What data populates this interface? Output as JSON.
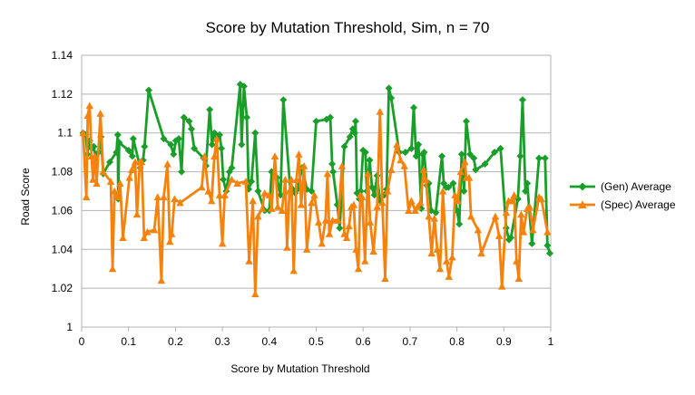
{
  "chart_data": {
    "type": "line",
    "title": "Score by Mutation Threshold, Sim, n = 70",
    "xlabel": "Score by Mutation Threshold",
    "ylabel": "Road Score",
    "xlim": [
      0,
      1
    ],
    "ylim": [
      1,
      1.14
    ],
    "x_ticks": [
      0,
      0.1,
      0.2,
      0.3,
      0.4,
      0.5,
      0.6,
      0.7,
      0.8,
      0.9,
      1
    ],
    "y_ticks": [
      1,
      1.02,
      1.04,
      1.06,
      1.08,
      1.1,
      1.12,
      1.14
    ],
    "x_tick_labels": [
      "0",
      "0.1",
      "0.2",
      "0.3",
      "0.4",
      "0.5",
      "0.6",
      "0.7",
      "0.8",
      "0.9",
      "1"
    ],
    "y_tick_labels": [
      "1",
      "1.02",
      "1.04",
      "1.06",
      "1.08",
      "1.1",
      "1.12",
      "1.14"
    ],
    "grid": {
      "horizontal": true,
      "vertical": false
    },
    "legend_position": "right",
    "series": [
      {
        "name": "(Gen) Average",
        "color": "#1a9e2a",
        "marker": "diamond",
        "points": [
          [
            0.003,
            1.1
          ],
          [
            0.009,
            1.099
          ],
          [
            0.012,
            1.089
          ],
          [
            0.017,
            1.096
          ],
          [
            0.022,
            1.092
          ],
          [
            0.026,
            1.093
          ],
          [
            0.03,
            1.087
          ],
          [
            0.036,
            1.09
          ],
          [
            0.041,
            1.098
          ],
          [
            0.046,
            1.079
          ],
          [
            0.06,
            1.085
          ],
          [
            0.074,
            1.09
          ],
          [
            0.077,
            1.099
          ],
          [
            0.078,
            1.066
          ],
          [
            0.08,
            1.095
          ],
          [
            0.1,
            1.091
          ],
          [
            0.108,
            1.088
          ],
          [
            0.11,
            1.097
          ],
          [
            0.125,
            1.082
          ],
          [
            0.131,
            1.086
          ],
          [
            0.134,
            1.093
          ],
          [
            0.143,
            1.122
          ],
          [
            0.175,
            1.097
          ],
          [
            0.19,
            1.094
          ],
          [
            0.196,
            1.089
          ],
          [
            0.201,
            1.096
          ],
          [
            0.207,
            1.097
          ],
          [
            0.213,
            1.08
          ],
          [
            0.218,
            1.108
          ],
          [
            0.229,
            1.106
          ],
          [
            0.234,
            1.102
          ],
          [
            0.24,
            1.092
          ],
          [
            0.26,
            1.087
          ],
          [
            0.265,
            1.083
          ],
          [
            0.273,
            1.112
          ],
          [
            0.278,
            1.094
          ],
          [
            0.283,
            1.1
          ],
          [
            0.29,
            1.098
          ],
          [
            0.294,
            1.099
          ],
          [
            0.298,
            1.092
          ],
          [
            0.302,
            1.076
          ],
          [
            0.308,
            1.07
          ],
          [
            0.315,
            1.08
          ],
          [
            0.32,
            1.082
          ],
          [
            0.338,
            1.125
          ],
          [
            0.341,
            1.094
          ],
          [
            0.346,
            1.124
          ],
          [
            0.352,
            1.108
          ],
          [
            0.356,
            1.071
          ],
          [
            0.362,
            1.075
          ],
          [
            0.37,
            1.1
          ],
          [
            0.376,
            1.07
          ],
          [
            0.39,
            1.06
          ],
          [
            0.4,
            1.06
          ],
          [
            0.405,
            1.08
          ],
          [
            0.41,
            1.079
          ],
          [
            0.416,
            1.077
          ],
          [
            0.424,
            1.068
          ],
          [
            0.43,
            1.117
          ],
          [
            0.445,
            1.07
          ],
          [
            0.45,
            1.071
          ],
          [
            0.455,
            1.069
          ],
          [
            0.46,
            1.071
          ],
          [
            0.47,
            1.082
          ],
          [
            0.48,
            1.071
          ],
          [
            0.49,
            1.07
          ],
          [
            0.5,
            1.106
          ],
          [
            0.522,
            1.107
          ],
          [
            0.53,
            1.108
          ],
          [
            0.534,
            1.084
          ],
          [
            0.536,
            1.08
          ],
          [
            0.545,
            1.063
          ],
          [
            0.55,
            1.051
          ],
          [
            0.56,
            1.093
          ],
          [
            0.572,
            1.098
          ],
          [
            0.578,
            1.102
          ],
          [
            0.582,
            1.1
          ],
          [
            0.584,
            1.106
          ],
          [
            0.587,
            1.069
          ],
          [
            0.592,
            1.066
          ],
          [
            0.595,
            1.07
          ],
          [
            0.6,
            1.091
          ],
          [
            0.605,
            1.09
          ],
          [
            0.608,
            1.07
          ],
          [
            0.614,
            1.086
          ],
          [
            0.619,
            1.072
          ],
          [
            0.624,
            1.068
          ],
          [
            0.63,
            1.078
          ],
          [
            0.636,
            1.065
          ],
          [
            0.645,
            1.068
          ],
          [
            0.65,
            1.071
          ],
          [
            0.655,
            1.123
          ],
          [
            0.66,
            1.118
          ],
          [
            0.677,
            1.09
          ],
          [
            0.69,
            1.09
          ],
          [
            0.703,
            1.092
          ],
          [
            0.708,
            1.113
          ],
          [
            0.713,
            1.088
          ],
          [
            0.718,
            1.094
          ],
          [
            0.724,
            1.061
          ],
          [
            0.727,
            1.089
          ],
          [
            0.73,
            1.09
          ],
          [
            0.736,
            1.073
          ],
          [
            0.74,
            1.074
          ],
          [
            0.745,
            1.06
          ],
          [
            0.755,
            1.059
          ],
          [
            0.768,
            1.088
          ],
          [
            0.772,
            1.074
          ],
          [
            0.777,
            1.072
          ],
          [
            0.782,
            1.072
          ],
          [
            0.792,
            1.074
          ],
          [
            0.8,
            1.06
          ],
          [
            0.805,
            1.053
          ],
          [
            0.81,
            1.089
          ],
          [
            0.815,
            1.07
          ],
          [
            0.82,
            1.106
          ],
          [
            0.828,
            1.089
          ],
          [
            0.836,
            1.087
          ],
          [
            0.84,
            1.081
          ],
          [
            0.86,
            1.084
          ],
          [
            0.88,
            1.09
          ],
          [
            0.893,
            1.092
          ],
          [
            0.905,
            1.051
          ],
          [
            0.911,
            1.045
          ],
          [
            0.915,
            1.046
          ],
          [
            0.93,
            1.066
          ],
          [
            0.935,
            1.088
          ],
          [
            0.94,
            1.117
          ],
          [
            0.946,
            1.07
          ],
          [
            0.95,
            1.074
          ],
          [
            0.96,
            1.043
          ],
          [
            0.975,
            1.087
          ],
          [
            0.988,
            1.087
          ],
          [
            0.993,
            1.042
          ],
          [
            0.998,
            1.038
          ]
        ]
      },
      {
        "name": "(Spec) Average",
        "color": "#f5820d",
        "marker": "triangle",
        "points": [
          [
            0.003,
            1.1
          ],
          [
            0.01,
            1.067
          ],
          [
            0.013,
            1.109
          ],
          [
            0.017,
            1.114
          ],
          [
            0.021,
            1.088
          ],
          [
            0.024,
            1.076
          ],
          [
            0.028,
            1.088
          ],
          [
            0.032,
            1.074
          ],
          [
            0.04,
            1.11
          ],
          [
            0.046,
            1.08
          ],
          [
            0.062,
            1.075
          ],
          [
            0.066,
            1.03
          ],
          [
            0.07,
            1.07
          ],
          [
            0.076,
            1.067
          ],
          [
            0.082,
            1.074
          ],
          [
            0.088,
            1.046
          ],
          [
            0.102,
            1.077
          ],
          [
            0.107,
            1.081
          ],
          [
            0.114,
            1.085
          ],
          [
            0.118,
            1.058
          ],
          [
            0.124,
            1.085
          ],
          [
            0.128,
            1.085
          ],
          [
            0.133,
            1.046
          ],
          [
            0.14,
            1.049
          ],
          [
            0.155,
            1.05
          ],
          [
            0.162,
            1.067
          ],
          [
            0.17,
            1.024
          ],
          [
            0.175,
            1.067
          ],
          [
            0.183,
            1.084
          ],
          [
            0.188,
            1.044
          ],
          [
            0.192,
            1.048
          ],
          [
            0.198,
            1.066
          ],
          [
            0.21,
            1.064
          ],
          [
            0.256,
            1.072
          ],
          [
            0.262,
            1.088
          ],
          [
            0.27,
            1.07
          ],
          [
            0.277,
            1.065
          ],
          [
            0.283,
            1.088
          ],
          [
            0.288,
            1.097
          ],
          [
            0.294,
            1.068
          ],
          [
            0.3,
            1.043
          ],
          [
            0.305,
            1.068
          ],
          [
            0.32,
            1.076
          ],
          [
            0.332,
            1.074
          ],
          [
            0.35,
            1.075
          ],
          [
            0.357,
            1.034
          ],
          [
            0.365,
            1.065
          ],
          [
            0.37,
            1.017
          ],
          [
            0.376,
            1.057
          ],
          [
            0.385,
            1.061
          ],
          [
            0.39,
            1.069
          ],
          [
            0.4,
            1.068
          ],
          [
            0.405,
            1.061
          ],
          [
            0.412,
            1.088
          ],
          [
            0.418,
            1.062
          ],
          [
            0.427,
            1.06
          ],
          [
            0.434,
            1.076
          ],
          [
            0.438,
            1.041
          ],
          [
            0.443,
            1.07
          ],
          [
            0.447,
            1.076
          ],
          [
            0.452,
            1.029
          ],
          [
            0.458,
            1.076
          ],
          [
            0.463,
            1.089
          ],
          [
            0.468,
            1.063
          ],
          [
            0.474,
            1.083
          ],
          [
            0.48,
            1.04
          ],
          [
            0.49,
            1.064
          ],
          [
            0.496,
            1.068
          ],
          [
            0.505,
            1.054
          ],
          [
            0.512,
            1.043
          ],
          [
            0.52,
            1.055
          ],
          [
            0.524,
            1.079
          ],
          [
            0.528,
            1.048
          ],
          [
            0.535,
            1.055
          ],
          [
            0.547,
            1.055
          ],
          [
            0.555,
            1.083
          ],
          [
            0.56,
            1.048
          ],
          [
            0.565,
            1.046
          ],
          [
            0.57,
            1.052
          ],
          [
            0.575,
            1.062
          ],
          [
            0.58,
            1.063
          ],
          [
            0.585,
            1.04
          ],
          [
            0.59,
            1.03
          ],
          [
            0.594,
            1.068
          ],
          [
            0.598,
            1.067
          ],
          [
            0.604,
            1.034
          ],
          [
            0.61,
            1.079
          ],
          [
            0.615,
            1.054
          ],
          [
            0.622,
            1.039
          ],
          [
            0.63,
            1.062
          ],
          [
            0.636,
            1.111
          ],
          [
            0.641,
            1.064
          ],
          [
            0.647,
            1.025
          ],
          [
            0.652,
            1.07
          ],
          [
            0.66,
            1.081
          ],
          [
            0.672,
            1.094
          ],
          [
            0.68,
            1.086
          ],
          [
            0.688,
            1.083
          ],
          [
            0.697,
            1.06
          ],
          [
            0.703,
            1.065
          ],
          [
            0.711,
            1.06
          ],
          [
            0.716,
            1.062
          ],
          [
            0.722,
            1.064
          ],
          [
            0.729,
            1.081
          ],
          [
            0.734,
            1.076
          ],
          [
            0.74,
            1.057
          ],
          [
            0.746,
            1.038
          ],
          [
            0.752,
            1.056
          ],
          [
            0.758,
            1.04
          ],
          [
            0.764,
            1.03
          ],
          [
            0.77,
            1.07
          ],
          [
            0.778,
            1.034
          ],
          [
            0.783,
            1.026
          ],
          [
            0.79,
            1.036
          ],
          [
            0.796,
            1.068
          ],
          [
            0.802,
            1.065
          ],
          [
            0.808,
            1.08
          ],
          [
            0.817,
            1.085
          ],
          [
            0.82,
            1.077
          ],
          [
            0.826,
            1.077
          ],
          [
            0.83,
            1.057
          ],
          [
            0.845,
            1.05
          ],
          [
            0.852,
            1.038
          ],
          [
            0.882,
            1.057
          ],
          [
            0.89,
            1.047
          ],
          [
            0.896,
            1.021
          ],
          [
            0.905,
            1.059
          ],
          [
            0.91,
            1.065
          ],
          [
            0.916,
            1.065
          ],
          [
            0.922,
            1.068
          ],
          [
            0.927,
            1.034
          ],
          [
            0.932,
            1.025
          ],
          [
            0.937,
            1.058
          ],
          [
            0.942,
            1.049
          ],
          [
            0.95,
            1.061
          ],
          [
            0.955,
            1.062
          ],
          [
            0.962,
            1.05
          ],
          [
            0.975,
            1.067
          ],
          [
            0.98,
            1.066
          ],
          [
            0.993,
            1.049
          ]
        ]
      }
    ]
  }
}
